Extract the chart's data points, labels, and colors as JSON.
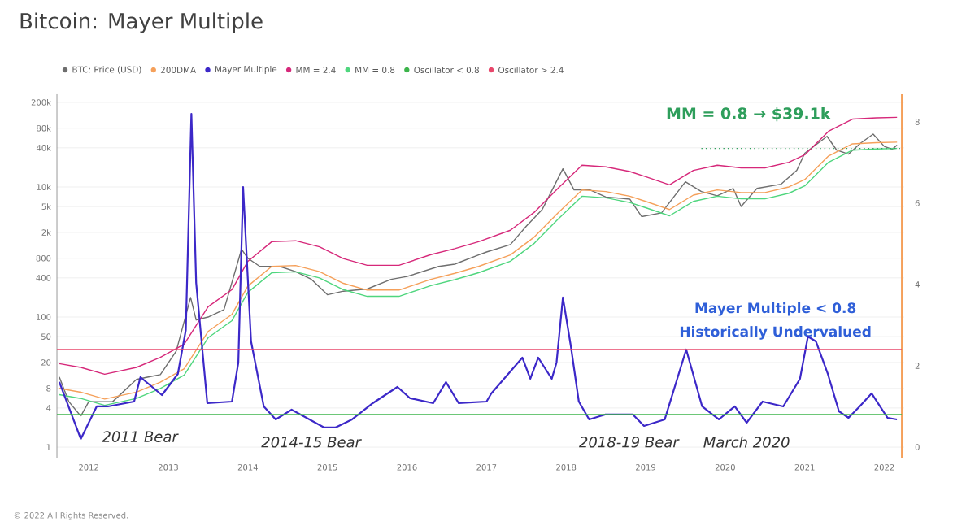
{
  "chart_data": {
    "type": "line",
    "title": "Bitcoin: Mayer Multiple",
    "series": [
      {
        "name": "BTC: Price (USD)",
        "color": "#6e6e6e",
        "x": [
          2011.63,
          2011.75,
          2011.9,
          2012.0,
          2012.3,
          2012.6,
          2012.75,
          2012.9,
          2013.1,
          2013.28,
          2013.35,
          2013.5,
          2013.7,
          2013.92,
          2014.0,
          2014.15,
          2014.4,
          2014.6,
          2014.8,
          2015.0,
          2015.2,
          2015.5,
          2015.8,
          2016.0,
          2016.4,
          2016.6,
          2016.9,
          2017.0,
          2017.3,
          2017.5,
          2017.7,
          2017.96,
          2018.1,
          2018.3,
          2018.5,
          2018.8,
          2018.95,
          2019.2,
          2019.5,
          2019.7,
          2019.9,
          2020.1,
          2020.2,
          2020.4,
          2020.7,
          2020.9,
          2021.0,
          2021.28,
          2021.4,
          2021.55,
          2021.7,
          2021.86,
          2022.0,
          2022.1,
          2022.16
        ],
        "values": [
          12,
          5,
          3,
          5,
          5,
          11,
          12,
          13,
          30,
          200,
          90,
          100,
          130,
          1100,
          800,
          600,
          600,
          500,
          380,
          220,
          250,
          270,
          380,
          420,
          600,
          650,
          900,
          1000,
          1300,
          2500,
          4500,
          19000,
          9000,
          9000,
          7000,
          6500,
          3500,
          4000,
          12000,
          8500,
          7300,
          9500,
          5000,
          9500,
          11000,
          18000,
          33000,
          60000,
          37000,
          32000,
          47000,
          65000,
          42000,
          38000,
          44000
        ]
      },
      {
        "name": "200DMA",
        "color": "#f5a05a",
        "x": [
          2011.63,
          2011.9,
          2012.2,
          2012.6,
          2012.9,
          2013.2,
          2013.5,
          2013.8,
          2014.0,
          2014.3,
          2014.6,
          2014.9,
          2015.2,
          2015.5,
          2015.9,
          2016.3,
          2016.6,
          2016.9,
          2017.3,
          2017.6,
          2017.9,
          2018.2,
          2018.5,
          2018.8,
          2019.0,
          2019.3,
          2019.6,
          2019.9,
          2020.2,
          2020.5,
          2020.8,
          2021.0,
          2021.3,
          2021.6,
          2021.9,
          2022.16
        ],
        "values": [
          8,
          7,
          5.5,
          7,
          10,
          16,
          60,
          110,
          300,
          600,
          620,
          500,
          330,
          260,
          260,
          380,
          470,
          600,
          900,
          1700,
          4000,
          9000,
          8500,
          7200,
          6000,
          4500,
          7500,
          9000,
          8200,
          8200,
          10000,
          13000,
          30000,
          46000,
          48000,
          48900
        ]
      },
      {
        "name": "Mayer Multiple",
        "color": "#3c28c8",
        "axis": "y2",
        "x": [
          2011.63,
          2011.9,
          2012.1,
          2012.24,
          2012.57,
          2012.65,
          2012.92,
          2013.12,
          2013.22,
          2013.29,
          2013.35,
          2013.49,
          2013.8,
          2013.88,
          2013.94,
          2014.04,
          2014.2,
          2014.35,
          2014.55,
          2014.96,
          2015.1,
          2015.31,
          2015.57,
          2015.88,
          2016.04,
          2016.33,
          2016.49,
          2016.65,
          2017.0,
          2017.06,
          2017.45,
          2017.55,
          2017.65,
          2017.82,
          2017.88,
          2017.96,
          2018.06,
          2018.16,
          2018.29,
          2018.49,
          2018.84,
          2018.98,
          2019.24,
          2019.51,
          2019.71,
          2019.92,
          2020.12,
          2020.27,
          2020.47,
          2020.73,
          2020.94,
          2021.04,
          2021.14,
          2021.29,
          2021.43,
          2021.55,
          2021.69,
          2021.84,
          2022.04,
          2022.16
        ],
        "values": [
          1.6,
          0.2,
          1.0,
          1.0,
          1.12,
          1.72,
          1.28,
          1.8,
          2.88,
          8.2,
          4.04,
          1.08,
          1.12,
          2.08,
          6.4,
          2.6,
          1.0,
          0.68,
          0.92,
          0.48,
          0.48,
          0.68,
          1.08,
          1.48,
          1.2,
          1.08,
          1.6,
          1.08,
          1.12,
          1.32,
          2.2,
          1.68,
          2.2,
          1.68,
          2.08,
          3.68,
          2.48,
          1.12,
          0.68,
          0.8,
          0.8,
          0.52,
          0.68,
          2.4,
          1.0,
          0.68,
          1.0,
          0.6,
          1.12,
          1.0,
          1.68,
          2.72,
          2.6,
          1.8,
          0.88,
          0.72,
          1.0,
          1.32,
          0.72,
          0.68
        ]
      },
      {
        "name": "MM = 2.4",
        "color": "#d6287a",
        "x": [
          2011.63,
          2011.9,
          2012.2,
          2012.6,
          2012.9,
          2013.2,
          2013.5,
          2013.8,
          2014.0,
          2014.3,
          2014.6,
          2014.9,
          2015.2,
          2015.5,
          2015.9,
          2016.3,
          2016.6,
          2016.9,
          2017.3,
          2017.6,
          2017.9,
          2018.2,
          2018.5,
          2018.8,
          2019.0,
          2019.3,
          2019.6,
          2019.9,
          2020.2,
          2020.5,
          2020.8,
          2021.0,
          2021.3,
          2021.6,
          2021.9,
          2022.16
        ],
        "values": [
          19.2,
          16.8,
          13.2,
          16.8,
          24,
          38.4,
          144,
          264,
          720,
          1440,
          1488,
          1200,
          792,
          624,
          624,
          912,
          1128,
          1440,
          2160,
          4080,
          9600,
          21600,
          20400,
          17280,
          14400,
          10800,
          18000,
          21600,
          19680,
          19680,
          24000,
          31200,
          72000,
          110400,
          115200,
          117360
        ]
      },
      {
        "name": "MM = 0.8",
        "color": "#4fd67e",
        "x": [
          2011.63,
          2011.9,
          2012.2,
          2012.6,
          2012.9,
          2013.2,
          2013.5,
          2013.8,
          2014.0,
          2014.3,
          2014.6,
          2014.9,
          2015.2,
          2015.5,
          2015.9,
          2016.3,
          2016.6,
          2016.9,
          2017.3,
          2017.6,
          2017.9,
          2018.2,
          2018.5,
          2018.8,
          2019.0,
          2019.3,
          2019.6,
          2019.9,
          2020.2,
          2020.5,
          2020.8,
          2021.0,
          2021.3,
          2021.6,
          2021.9,
          2022.16
        ],
        "values": [
          6.4,
          5.6,
          4.4,
          5.6,
          8,
          12.8,
          48,
          88,
          240,
          480,
          496,
          400,
          264,
          208,
          208,
          304,
          376,
          480,
          720,
          1360,
          3200,
          7200,
          6800,
          5760,
          4800,
          3600,
          6000,
          7200,
          6560,
          6560,
          8000,
          10400,
          24000,
          36800,
          38400,
          39120
        ]
      },
      {
        "name": "Oscillator < 0.8",
        "color": "#3cb44b",
        "axis": "y2",
        "x": [
          2011.6,
          2022.22
        ],
        "values": [
          0.8,
          0.8
        ]
      },
      {
        "name": "Oscillator > 2.4",
        "color": "#e8476b",
        "axis": "y2",
        "x": [
          2011.6,
          2022.22
        ],
        "values": [
          2.4,
          2.4
        ]
      },
      {
        "color": "#2e9e5b",
        "line_style": "dotted",
        "x": [
          2019.7,
          2022.22
        ],
        "values": [
          39100,
          39100
        ]
      }
    ],
    "xlim": [
      2011.6,
      2022.25
    ],
    "xticks": [
      2012,
      2013,
      2014,
      2015,
      2016,
      2017,
      2018,
      2019,
      2020,
      2021,
      2022
    ],
    "ylim": [
      0.67,
      266000
    ],
    "yticks": [
      1,
      4,
      8,
      20,
      50,
      100,
      400,
      800,
      {
        "value": 2000,
        "label": "2k"
      },
      {
        "value": 5000,
        "label": "5k"
      },
      {
        "value": 10000,
        "label": "10k"
      },
      {
        "value": 40000,
        "label": "40k"
      },
      {
        "value": 80000,
        "label": "80k"
      },
      {
        "value": 200000,
        "label": "200k"
      }
    ],
    "y2lim": [
      -0.28,
      8.68
    ],
    "y2ticks": [
      0,
      2,
      4,
      6,
      8
    ],
    "log": "y",
    "grid": "y",
    "legend": "top",
    "marker": "none",
    "line_style": "solid",
    "ref_lines": [
      {
        "axis": "x",
        "value": 2022.22,
        "color": "#f5a05a"
      }
    ],
    "annotations": [
      "MM = 0.8 → $39.1k",
      "Mayer Multiple < 0.8",
      "Historically Undervalued",
      "2011 Bear",
      "2014-15 Bear",
      "2018-19 Bear",
      "March 2020",
      "© 2022 All Rights Reserved."
    ]
  }
}
